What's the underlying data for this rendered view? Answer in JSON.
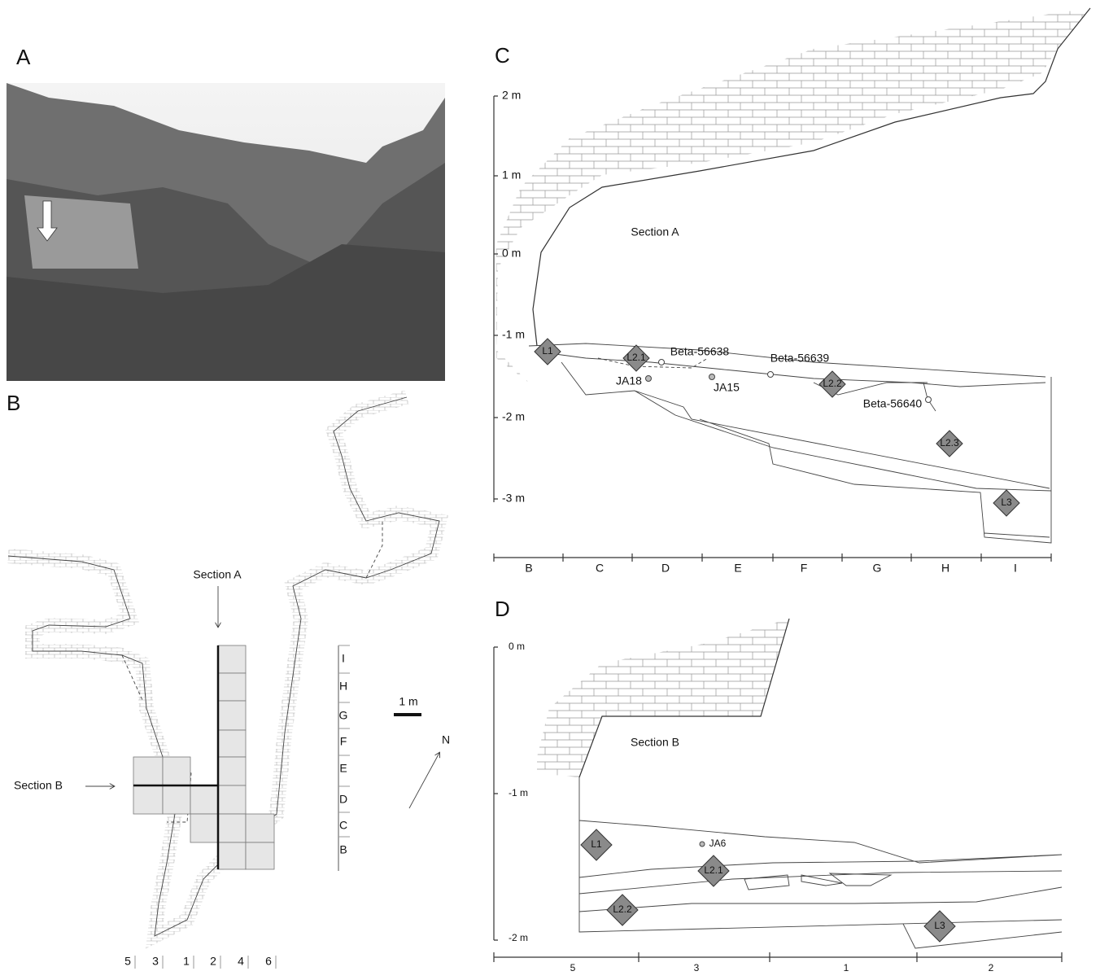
{
  "panel_a": {
    "label": "A"
  },
  "panel_b": {
    "label": "B",
    "section_a": "Section A",
    "section_b": "Section B",
    "scale": "1 m",
    "north": "N",
    "rows": [
      "I",
      "H",
      "G",
      "F",
      "E",
      "D",
      "C",
      "B"
    ],
    "columns": [
      "5",
      "3",
      "1",
      "2",
      "4",
      "6"
    ]
  },
  "panel_c": {
    "label": "C",
    "title": "Section A",
    "depths": [
      "2 m",
      "1 m",
      "0 m",
      "-1 m",
      "-2 m",
      "-3 m"
    ],
    "layers": [
      "L1",
      "L2.1",
      "L2.2",
      "L2.3",
      "L3"
    ],
    "samples": [
      "Beta-56638",
      "Beta-56639",
      "Beta-56640",
      "JA18",
      "JA15"
    ],
    "columns": [
      "B",
      "C",
      "D",
      "E",
      "F",
      "G",
      "H",
      "I"
    ]
  },
  "panel_d": {
    "label": "D",
    "title": "Section B",
    "depths": [
      "0 m",
      "-1 m",
      "-2 m"
    ],
    "layers": [
      "L1",
      "L2.1",
      "L2.2",
      "L3"
    ],
    "samples": [
      "JA6"
    ],
    "columns": [
      "5",
      "3",
      "1",
      "2"
    ]
  }
}
